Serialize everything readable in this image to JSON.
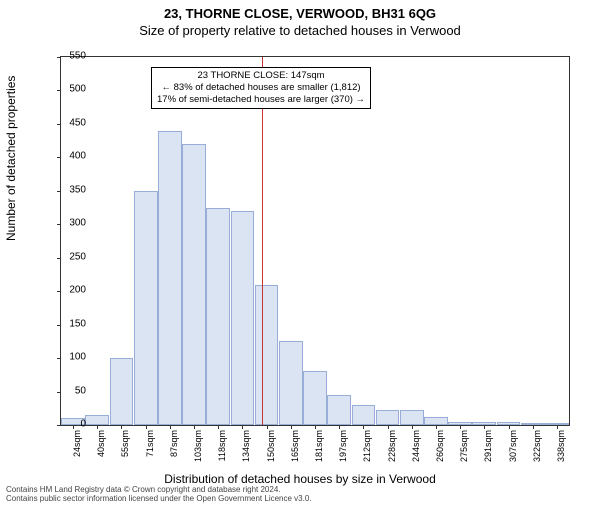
{
  "title_main": "23, THORNE CLOSE, VERWOOD, BH31 6QG",
  "title_sub": "Size of property relative to detached houses in Verwood",
  "ylabel": "Number of detached properties",
  "xlabel": "Distribution of detached houses by size in Verwood",
  "footer_line1": "Contains HM Land Registry data © Crown copyright and database right 2024.",
  "footer_line2": "Contains public sector information licensed under the Open Government Licence v3.0.",
  "chart": {
    "type": "histogram",
    "ylim": [
      0,
      550
    ],
    "ytick_step": 50,
    "bar_fill": "#dbe4f3",
    "bar_stroke": "#98aed6",
    "background": "#ffffff",
    "marker_color": "#cc3333",
    "callout": {
      "line1": "23 THORNE CLOSE: 147sqm",
      "line2": "← 83% of detached houses are smaller (1,812)",
      "line3": "17% of semi-detached houses are larger (370) →"
    },
    "marker_x_index": 8,
    "x_labels": [
      "24sqm",
      "40sqm",
      "55sqm",
      "71sqm",
      "87sqm",
      "103sqm",
      "118sqm",
      "134sqm",
      "150sqm",
      "165sqm",
      "181sqm",
      "197sqm",
      "212sqm",
      "228sqm",
      "244sqm",
      "260sqm",
      "275sqm",
      "291sqm",
      "307sqm",
      "322sqm",
      "338sqm"
    ],
    "values": [
      10,
      15,
      100,
      350,
      440,
      420,
      325,
      320,
      210,
      125,
      80,
      45,
      30,
      22,
      22,
      12,
      5,
      5,
      5,
      0,
      0
    ]
  }
}
